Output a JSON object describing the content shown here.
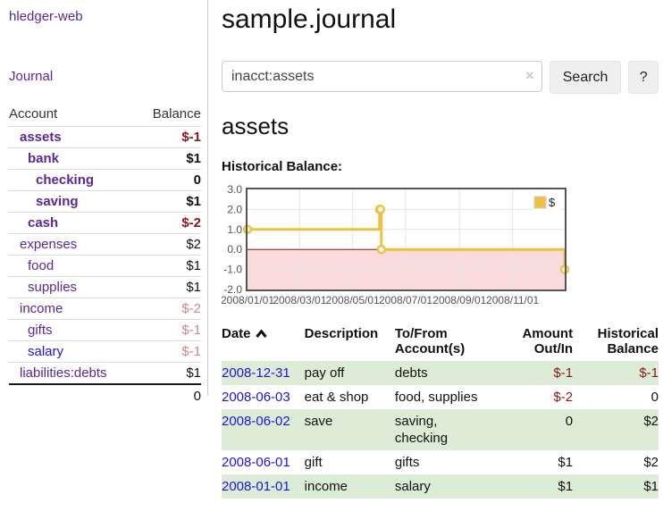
{
  "colors": {
    "link_purple": "#5c2699",
    "link_blue": "#2213dd",
    "neg_strong": "#8b1717",
    "neg_muted": "#c58c8c",
    "row_green": "#dcecd7"
  },
  "sidebar": {
    "app_title": "hledger-web",
    "journal_link": "Journal",
    "accounts": {
      "header": {
        "account": "Account",
        "balance": "Balance"
      },
      "rows": [
        {
          "name": "assets",
          "balance": "$-1",
          "level": 1,
          "bold": true,
          "neg": "strong"
        },
        {
          "name": "bank",
          "balance": "$1",
          "level": 2,
          "bold": true
        },
        {
          "name": "checking",
          "balance": "0",
          "level": 3,
          "bold": true
        },
        {
          "name": "saving",
          "balance": "$1",
          "level": 3,
          "bold": true
        },
        {
          "name": "cash",
          "balance": "$-2",
          "level": 2,
          "bold": true,
          "neg": "strong"
        },
        {
          "name": "expenses",
          "balance": "$2",
          "level": 1
        },
        {
          "name": "food",
          "balance": "$1",
          "level": 2
        },
        {
          "name": "supplies",
          "balance": "$1",
          "level": 2
        },
        {
          "name": "income",
          "balance": "$-2",
          "level": 1,
          "neg": "muted"
        },
        {
          "name": "gifts",
          "balance": "$-1",
          "level": 2,
          "neg": "muted"
        },
        {
          "name": "salary",
          "balance": "$-1",
          "level": 2,
          "neg": "muted",
          "blue": true
        },
        {
          "name": "liabilities:debts",
          "balance": "$1",
          "level": 1
        }
      ],
      "total": "0"
    }
  },
  "main": {
    "title": "sample.journal",
    "search": {
      "value": "inacct:assets",
      "clear_icon": "×",
      "search_button": "Search",
      "help_button": "?"
    },
    "account_heading": "assets",
    "chart_label": "Historical Balance:"
  },
  "chart_data": {
    "type": "line",
    "step": true,
    "title": "Historical Balance:",
    "series": [
      {
        "name": "$",
        "color": "#edc240",
        "points": [
          {
            "date": "2008-01-01",
            "value": 1
          },
          {
            "date": "2008-06-01",
            "value": 2
          },
          {
            "date": "2008-06-02",
            "value": 2
          },
          {
            "date": "2008-06-03",
            "value": 0
          },
          {
            "date": "2008-12-31",
            "value": -1
          }
        ]
      }
    ],
    "x_range": [
      "2008-01-01",
      "2008-12-31"
    ],
    "ylim": [
      -2,
      3
    ],
    "y_ticks": [
      3.0,
      2.0,
      1.0,
      0.0,
      -1.0,
      -2.0
    ],
    "x_ticks": [
      "2008/01/01",
      "2008/03/01",
      "2008/05/01",
      "2008/07/01",
      "2008/09/01",
      "2008/11/01"
    ],
    "grid": true,
    "grid_color": "#e5e5e5",
    "border_color": "#545454",
    "axis_text_color": "#545454",
    "negative_region_color": "#fadbdc",
    "zero_line_color": "#8e1515",
    "legend_position": "top-right",
    "legend_label": "$"
  },
  "register": {
    "headers": {
      "date": "Date",
      "description": "Description",
      "account": "To/From Account(s)",
      "amount": "Amount Out/In",
      "balance": "Historical Balance"
    },
    "rows": [
      {
        "date": "2008-12-31",
        "description": "pay off",
        "accounts": "debts",
        "amount": "$-1",
        "balance": "$-1",
        "amount_neg": true,
        "balance_neg": true
      },
      {
        "date": "2008-06-03",
        "description": "eat & shop",
        "accounts": "food, supplies",
        "amount": "$-2",
        "balance": "0",
        "amount_neg": true
      },
      {
        "date": "2008-06-02",
        "description": "save",
        "accounts": "saving, checking",
        "amount": "0",
        "balance": "$2"
      },
      {
        "date": "2008-06-01",
        "description": "gift",
        "accounts": "gifts",
        "amount": "$1",
        "balance": "$2"
      },
      {
        "date": "2008-01-01",
        "description": "income",
        "accounts": "salary",
        "amount": "$1",
        "balance": "$1"
      }
    ]
  }
}
